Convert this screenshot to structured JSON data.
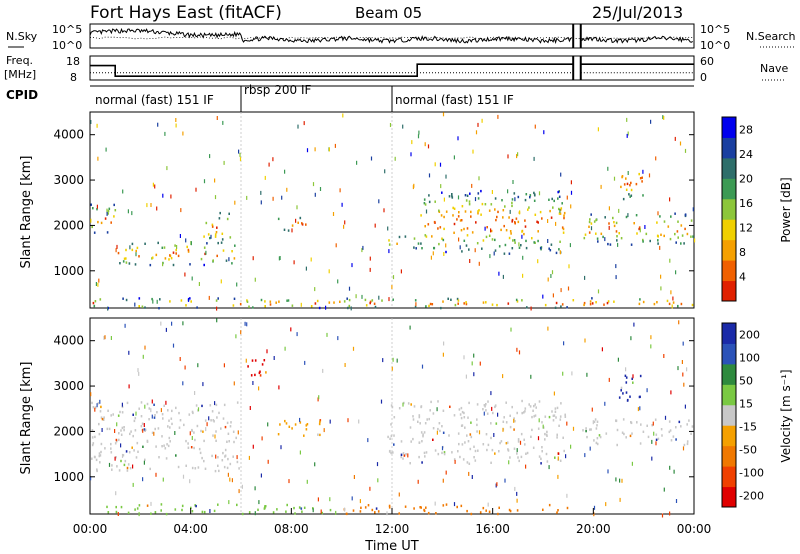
{
  "header": {
    "title": "Fort Hays East (fitACF)",
    "beam": "Beam 05",
    "date": "25/Jul/2013"
  },
  "chart_data": [
    {
      "type": "line",
      "panel": "noise",
      "left_label": "N.Sky",
      "right_label": "N.Search",
      "left_ticks": [
        "10^5",
        "10^0"
      ],
      "right_ticks": [
        "10^5",
        "10^0"
      ],
      "gaps_hours": [
        [
          19.2,
          19.5
        ]
      ]
    },
    {
      "type": "line",
      "panel": "frequency",
      "left_label_line1": "Freq.",
      "left_label_line2": "[MHz]",
      "left_ticks": [
        18,
        8
      ],
      "right_label": "Nave",
      "right_ticks": [
        60,
        0
      ],
      "freq_steps": [
        {
          "x0": 0.0,
          "x1": 1.0,
          "value": 14.0
        },
        {
          "x0": 1.0,
          "x1": 13.0,
          "value": 9.6
        },
        {
          "x0": 13.0,
          "x1": 19.2,
          "value": 14.6
        },
        {
          "x0": 19.5,
          "x1": 24.0,
          "value": 14.6
        }
      ],
      "nave_value": 18,
      "gaps_hours": [
        [
          19.2,
          19.5
        ]
      ]
    },
    {
      "type": "table",
      "panel": "cpid",
      "label": "CPID",
      "segments": [
        {
          "start": 0.0,
          "end": 6.0,
          "name": "normal (fast) 151 IF"
        },
        {
          "start": 6.0,
          "end": 12.0,
          "name": "rbsp 200 IF"
        },
        {
          "start": 12.0,
          "end": 24.0,
          "name": "normal (fast) 151 IF"
        }
      ]
    },
    {
      "type": "heatmap",
      "panel": "power",
      "ylabel": "Slant Range [km]",
      "ylim": [
        180,
        4500
      ],
      "yticks": [
        1000,
        2000,
        3000,
        4000
      ],
      "xlim": [
        0,
        24
      ],
      "colorbar_label": "Power [dB]",
      "colorbar_ticks": [
        28,
        24,
        20,
        16,
        12,
        8,
        4
      ],
      "colorbar_range": [
        0,
        30
      ],
      "colors": [
        "#0000ee",
        "#1a3fa0",
        "#2e6e6a",
        "#3c9a54",
        "#8cc63a",
        "#f0d000",
        "#f5a000",
        "#f06000",
        "#e02000"
      ],
      "echo_bands": [
        {
          "t0": 0.0,
          "t1": 1.0,
          "r0": 1800,
          "r1": 2500
        },
        {
          "t0": 1.0,
          "t1": 5.9,
          "r0": 1150,
          "r1": 1650
        },
        {
          "t0": 4.5,
          "t1": 5.6,
          "r0": 1600,
          "r1": 2300
        },
        {
          "t0": 7.3,
          "t1": 8.6,
          "r0": 1900,
          "r1": 2200
        },
        {
          "t0": 11.8,
          "t1": 13.0,
          "r0": 1500,
          "r1": 1800
        },
        {
          "t0": 13.0,
          "t1": 18.9,
          "r0": 1400,
          "r1": 2800
        },
        {
          "t0": 19.5,
          "t1": 24.0,
          "r0": 1600,
          "r1": 2300
        },
        {
          "t0": 20.9,
          "t1": 22.0,
          "r0": 2600,
          "r1": 3400
        },
        {
          "t0": 0.0,
          "t1": 24.0,
          "r0": 200,
          "r1": 420
        }
      ],
      "gaps_hours": [
        [
          19.2,
          19.5
        ]
      ]
    },
    {
      "type": "heatmap",
      "panel": "velocity",
      "ylabel": "Slant Range [km]",
      "ylim": [
        180,
        4500
      ],
      "yticks": [
        1000,
        2000,
        3000,
        4000
      ],
      "xlim": [
        0,
        24
      ],
      "xticks": [
        "00:00",
        "04:00",
        "08:00",
        "12:00",
        "16:00",
        "20:00",
        "00:00"
      ],
      "xlabel": "Time UT",
      "colorbar_label": "Velocity [m s⁻¹]",
      "colorbar_ticks": [
        "200",
        "100",
        "50",
        "15",
        "-15",
        "-50",
        "-100",
        "-200"
      ],
      "colors": [
        "#1a2aa8",
        "#2b52b8",
        "#2e8a3e",
        "#7ac943",
        "#c8c8c8",
        "#f5a000",
        "#f07800",
        "#f04000",
        "#e00000"
      ],
      "echo_bands": [
        {
          "t0": 0.0,
          "t1": 5.9,
          "r0": 1150,
          "r1": 2700,
          "color": "#c8c8c8"
        },
        {
          "t0": 7.3,
          "t1": 9.2,
          "r0": 1900,
          "r1": 2300,
          "color": "#f5a000"
        },
        {
          "t0": 11.8,
          "t1": 18.9,
          "r0": 1300,
          "r1": 2700,
          "color": "#c8c8c8"
        },
        {
          "t0": 19.5,
          "t1": 24.0,
          "r0": 1700,
          "r1": 2300,
          "color": "#c8c8c8"
        },
        {
          "t0": 21.0,
          "t1": 22.0,
          "r0": 2600,
          "r1": 3300,
          "color": "#1a2aa8"
        },
        {
          "t0": 6.2,
          "t1": 7.0,
          "r0": 3100,
          "r1": 3700,
          "color": "#e00000"
        },
        {
          "t0": 0.3,
          "t1": 10.0,
          "r0": 200,
          "r1": 420,
          "color": "#7ac943"
        },
        {
          "t0": 10.0,
          "t1": 19.0,
          "r0": 200,
          "r1": 420,
          "color": "#f07800"
        }
      ],
      "gaps_hours": [
        [
          19.2,
          19.5
        ]
      ]
    }
  ]
}
